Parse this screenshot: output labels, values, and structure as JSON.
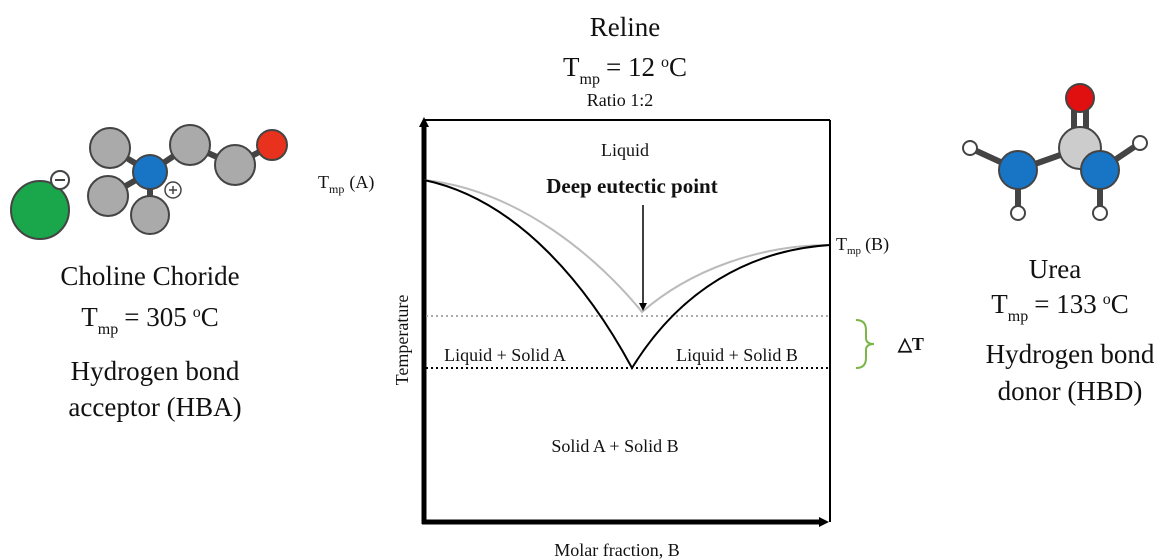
{
  "center": {
    "name": "Reline",
    "tmp": {
      "symbol": "T",
      "subscript": "mp",
      "value": "= 12",
      "degree": "o",
      "unit": "C"
    },
    "ratio": "Ratio 1:2"
  },
  "left": {
    "name": "Choline Choride",
    "tmp": {
      "symbol": "T",
      "subscript": "mp",
      "value": "= 305",
      "degree": "o",
      "unit": "C"
    },
    "role_line1": "Hydrogen bond",
    "role_line2": "acceptor (HBA)"
  },
  "right": {
    "name": "Urea",
    "tmp": {
      "symbol": "T",
      "subscript": "mp",
      "value": "= 133",
      "degree": "o",
      "unit": "C"
    },
    "role_line1": "Hydrogen bond",
    "role_line2": "donor (HBD)"
  },
  "diagram": {
    "liquid": "Liquid",
    "eutectic": "Deep eutectic point",
    "tmp_a": {
      "symbol": "T",
      "subscript": "mp",
      "label": "(A)"
    },
    "tmp_b": {
      "symbol": "T",
      "subscript": "mp",
      "label": "(B)"
    },
    "region_a": "Liquid + Solid A",
    "region_b": "Liquid + Solid B",
    "solid": "Solid A + Solid B",
    "delta": "△T",
    "y_axis": "Temperature",
    "x_axis": "Molar fraction, B"
  }
}
